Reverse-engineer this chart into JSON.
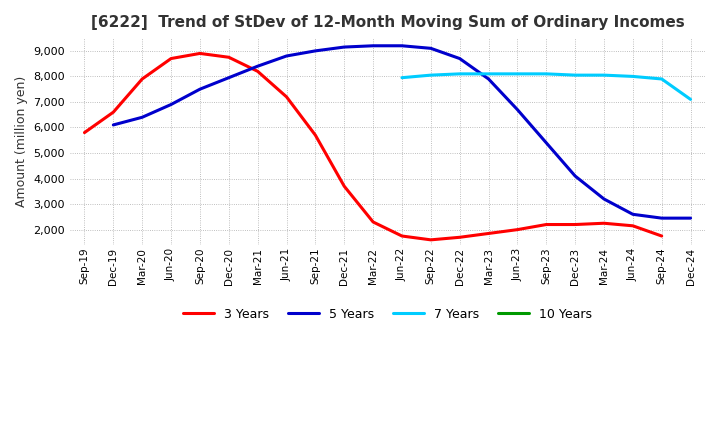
{
  "title": "[6222]  Trend of StDev of 12-Month Moving Sum of Ordinary Incomes",
  "ylabel": "Amount (million yen)",
  "ylim": [
    1400,
    9500
  ],
  "yticks": [
    2000,
    3000,
    4000,
    5000,
    6000,
    7000,
    8000,
    9000
  ],
  "bg_color": "#ffffff",
  "grid_color": "#aaaaaa",
  "legend": [
    "3 Years",
    "5 Years",
    "7 Years",
    "10 Years"
  ],
  "legend_colors": [
    "#ff0000",
    "#0000cc",
    "#00ccff",
    "#009900"
  ],
  "x_labels": [
    "Sep-19",
    "Dec-19",
    "Mar-20",
    "Jun-20",
    "Sep-20",
    "Dec-20",
    "Mar-21",
    "Jun-21",
    "Sep-21",
    "Dec-21",
    "Mar-22",
    "Jun-22",
    "Sep-22",
    "Dec-22",
    "Mar-23",
    "Jun-23",
    "Sep-23",
    "Dec-23",
    "Mar-24",
    "Jun-24",
    "Sep-24",
    "Dec-24"
  ],
  "series_3y": [
    5800,
    6600,
    7900,
    8700,
    8900,
    8750,
    8200,
    7200,
    5700,
    3700,
    2300,
    1750,
    1600,
    1700,
    1850,
    2000,
    2200,
    2200,
    2250,
    2150,
    1750,
    null
  ],
  "series_5y": [
    null,
    6100,
    6400,
    6900,
    7500,
    7950,
    8400,
    8800,
    9000,
    9150,
    9200,
    9200,
    9100,
    8700,
    7900,
    6700,
    5400,
    4100,
    3200,
    2600,
    2450,
    2450
  ],
  "series_7y": [
    null,
    null,
    null,
    null,
    null,
    null,
    null,
    null,
    null,
    null,
    null,
    7950,
    8050,
    8100,
    8100,
    8100,
    8100,
    8050,
    8050,
    8000,
    7900,
    7100
  ],
  "series_10y": [
    null,
    null,
    null,
    null,
    null,
    null,
    null,
    null,
    null,
    null,
    null,
    null,
    null,
    null,
    null,
    null,
    null,
    null,
    null,
    null,
    null,
    null
  ]
}
